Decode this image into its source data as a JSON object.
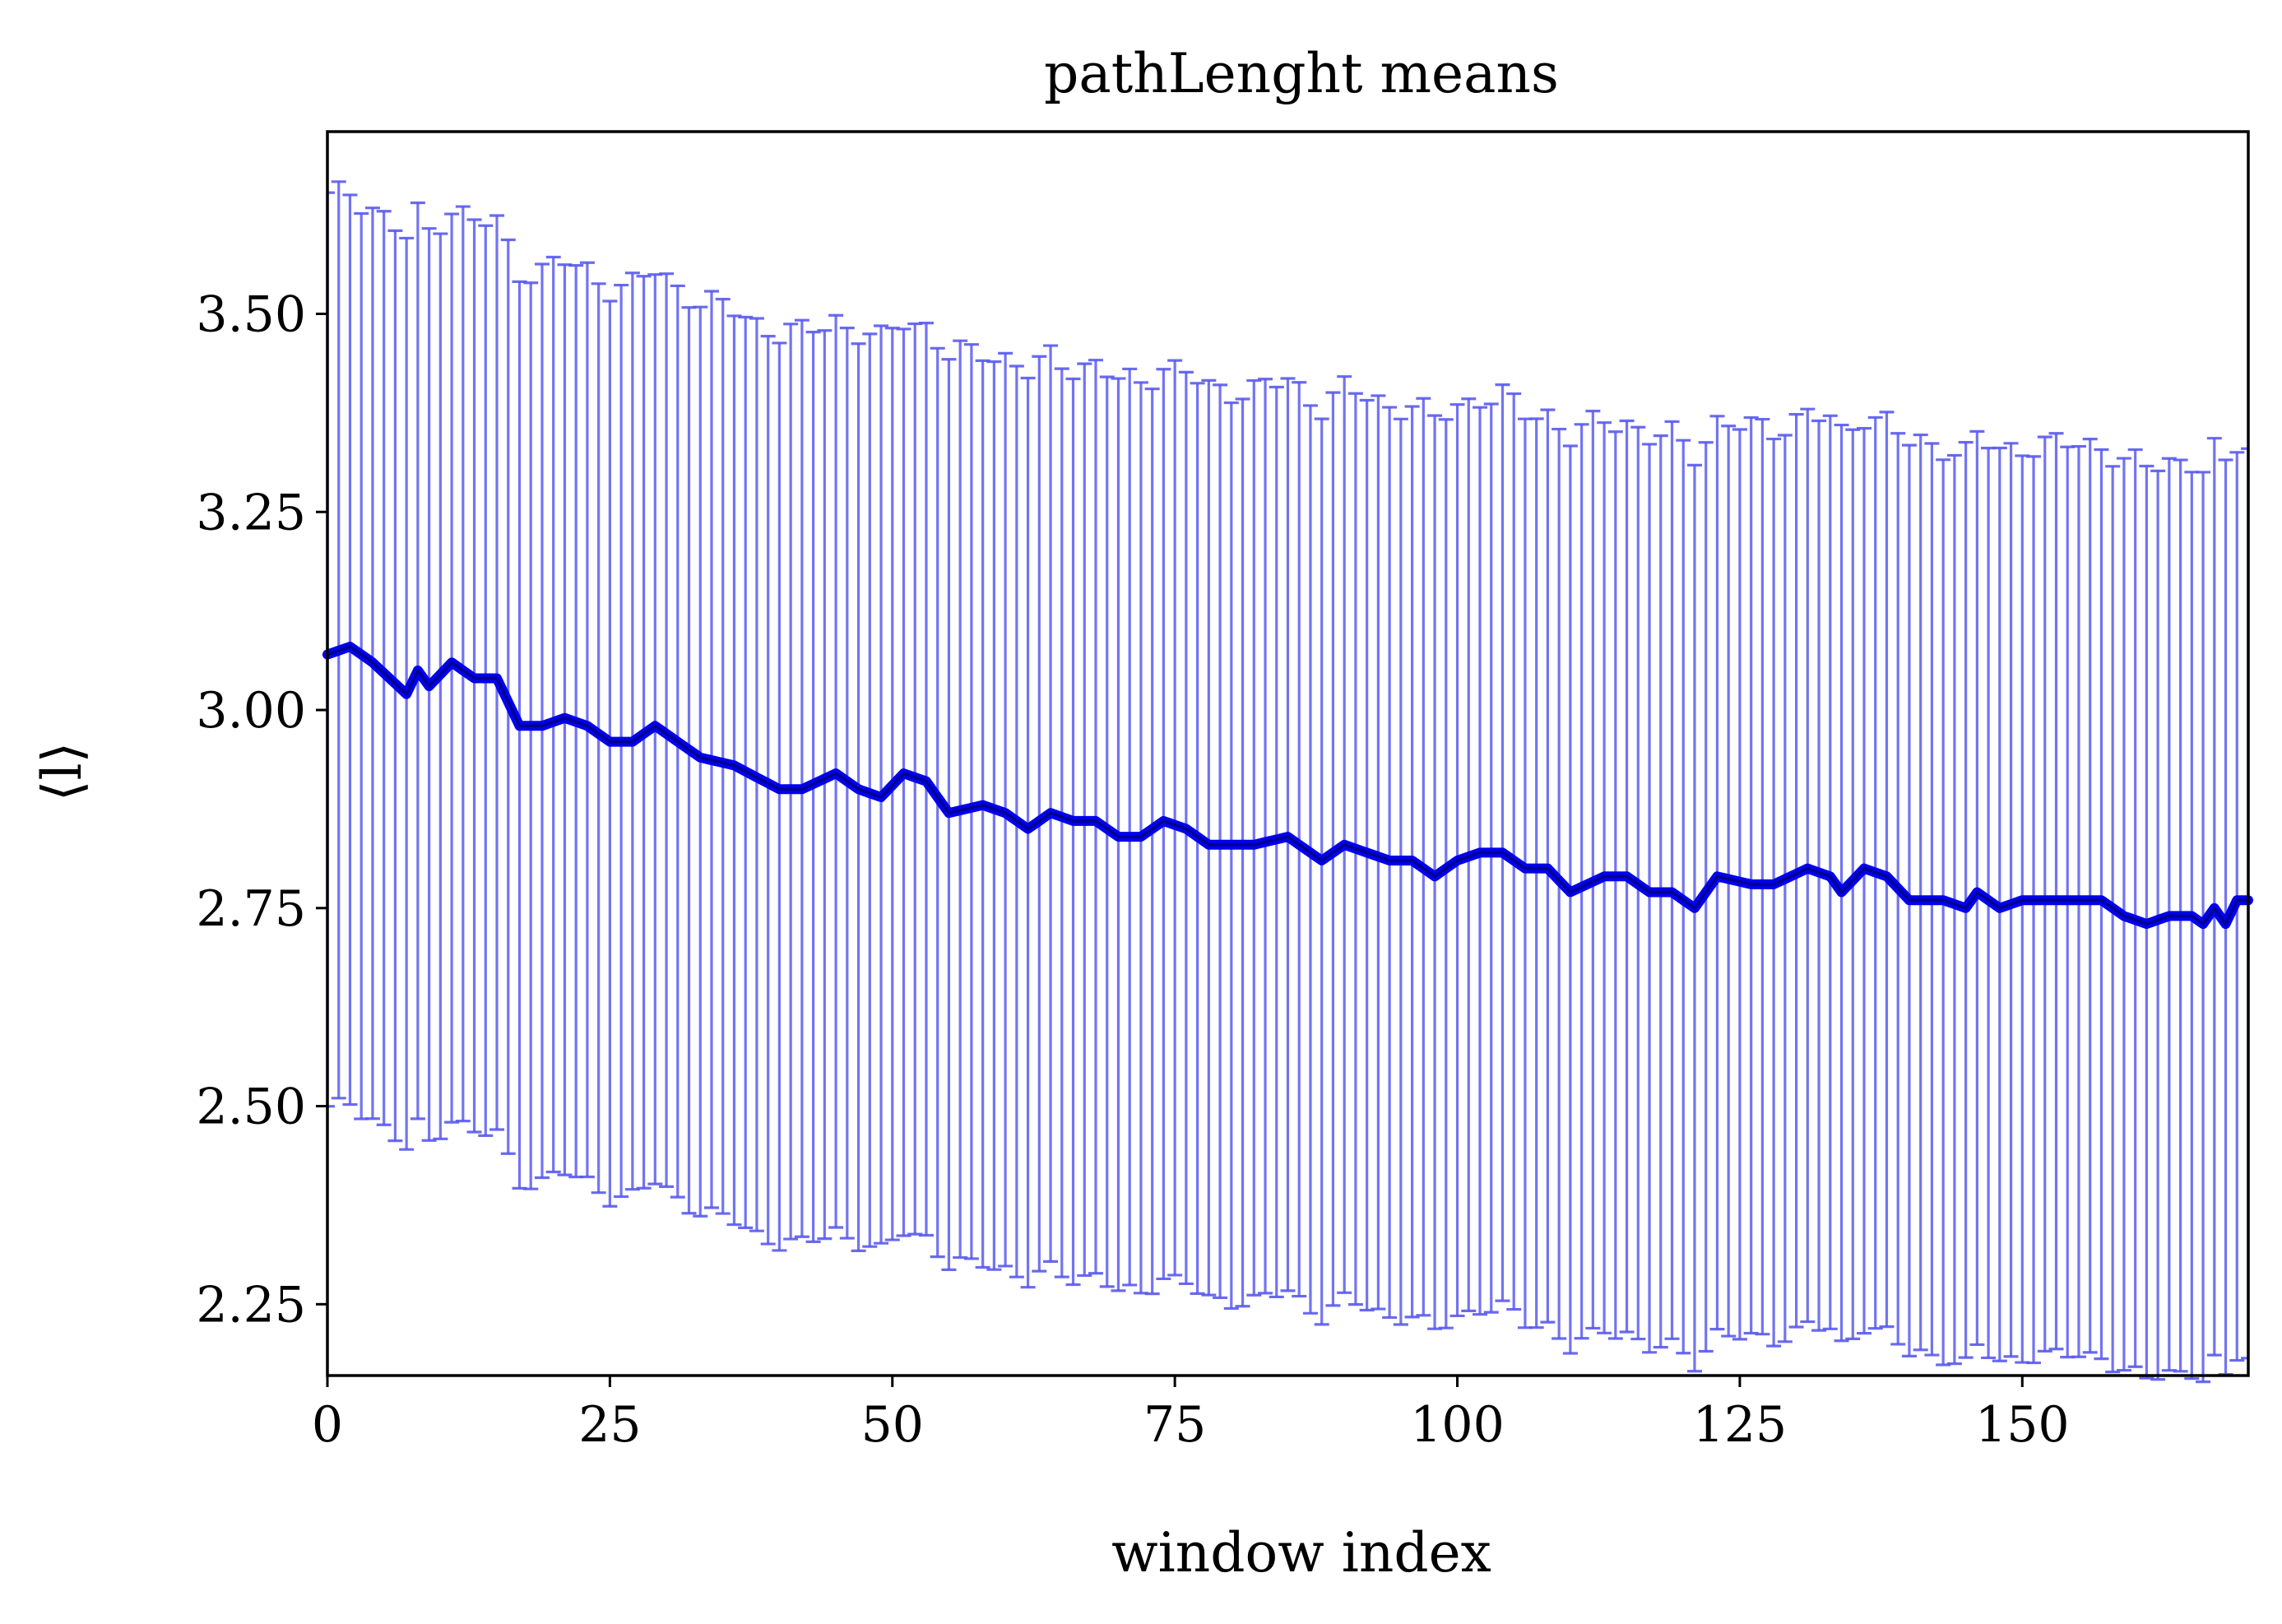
{
  "chart_data": {
    "type": "line",
    "title": "pathLenght means",
    "xlabel": "window index",
    "ylabel": "⟨l⟩",
    "xlim": [
      0,
      170
    ],
    "ylim": [
      2.16,
      3.73
    ],
    "xticks": [
      0,
      25,
      50,
      75,
      100,
      125,
      150
    ],
    "xtick_labels": [
      "0",
      "25",
      "50",
      "75",
      "100",
      "125",
      "150"
    ],
    "yticks": [
      2.25,
      2.5,
      2.75,
      3.0,
      3.25,
      3.5
    ],
    "ytick_labels": [
      "2.25",
      "2.50",
      "2.75",
      "3.00",
      "3.25",
      "3.50"
    ],
    "grid": false,
    "legend": "none",
    "error_bar_halfwidth": 0.575,
    "colors": {
      "errorbar": "#5a5af0",
      "mean": "#0000ee"
    },
    "mean_anchors": [
      [
        0,
        3.07
      ],
      [
        2,
        3.08
      ],
      [
        4,
        3.06
      ],
      [
        7,
        3.02
      ],
      [
        8,
        3.05
      ],
      [
        9,
        3.03
      ],
      [
        11,
        3.06
      ],
      [
        13,
        3.04
      ],
      [
        15,
        3.04
      ],
      [
        17,
        2.98
      ],
      [
        19,
        2.98
      ],
      [
        21,
        2.99
      ],
      [
        23,
        2.98
      ],
      [
        25,
        2.96
      ],
      [
        27,
        2.96
      ],
      [
        29,
        2.98
      ],
      [
        31,
        2.96
      ],
      [
        33,
        2.94
      ],
      [
        36,
        2.93
      ],
      [
        40,
        2.9
      ],
      [
        42,
        2.9
      ],
      [
        45,
        2.92
      ],
      [
        47,
        2.9
      ],
      [
        49,
        2.89
      ],
      [
        51,
        2.92
      ],
      [
        53,
        2.91
      ],
      [
        55,
        2.87
      ],
      [
        58,
        2.88
      ],
      [
        60,
        2.87
      ],
      [
        62,
        2.85
      ],
      [
        64,
        2.87
      ],
      [
        66,
        2.86
      ],
      [
        68,
        2.86
      ],
      [
        70,
        2.84
      ],
      [
        72,
        2.84
      ],
      [
        74,
        2.86
      ],
      [
        76,
        2.85
      ],
      [
        78,
        2.83
      ],
      [
        82,
        2.83
      ],
      [
        85,
        2.84
      ],
      [
        87,
        2.82
      ],
      [
        88,
        2.81
      ],
      [
        90,
        2.83
      ],
      [
        92,
        2.82
      ],
      [
        94,
        2.81
      ],
      [
        96,
        2.81
      ],
      [
        98,
        2.79
      ],
      [
        100,
        2.81
      ],
      [
        102,
        2.82
      ],
      [
        104,
        2.82
      ],
      [
        106,
        2.8
      ],
      [
        108,
        2.8
      ],
      [
        110,
        2.77
      ],
      [
        113,
        2.79
      ],
      [
        115,
        2.79
      ],
      [
        117,
        2.77
      ],
      [
        119,
        2.77
      ],
      [
        121,
        2.75
      ],
      [
        123,
        2.79
      ],
      [
        126,
        2.78
      ],
      [
        128,
        2.78
      ],
      [
        131,
        2.8
      ],
      [
        133,
        2.79
      ],
      [
        134,
        2.77
      ],
      [
        136,
        2.8
      ],
      [
        138,
        2.79
      ],
      [
        140,
        2.76
      ],
      [
        143,
        2.76
      ],
      [
        145,
        2.75
      ],
      [
        146,
        2.77
      ],
      [
        148,
        2.75
      ],
      [
        150,
        2.76
      ],
      [
        152,
        2.76
      ],
      [
        155,
        2.76
      ],
      [
        157,
        2.76
      ],
      [
        159,
        2.74
      ],
      [
        161,
        2.73
      ],
      [
        163,
        2.74
      ],
      [
        165,
        2.74
      ],
      [
        166,
        2.73
      ],
      [
        167,
        2.75
      ],
      [
        168,
        2.73
      ],
      [
        169,
        2.76
      ],
      [
        170,
        2.76
      ]
    ]
  }
}
